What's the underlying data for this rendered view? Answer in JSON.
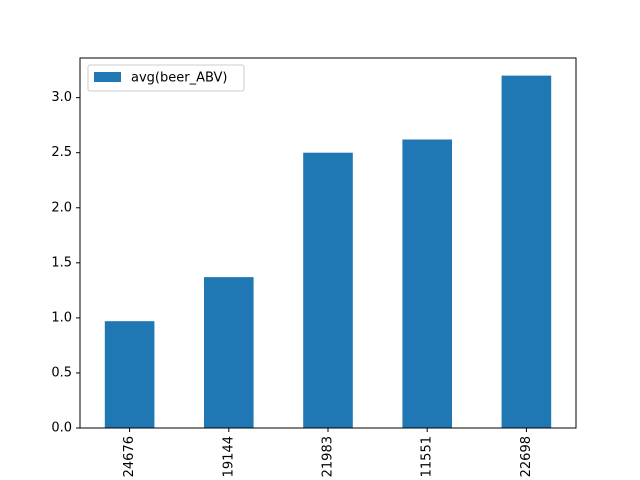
{
  "chart_data": {
    "type": "bar",
    "categories": [
      "24676",
      "19144",
      "21983",
      "11551",
      "22698"
    ],
    "series": [
      {
        "name": "avg(beer_ABV)",
        "values": [
          0.97,
          1.37,
          2.5,
          2.62,
          3.2
        ],
        "color": "#1f77b4"
      }
    ],
    "ylim": [
      0,
      3.36
    ],
    "yticks": [
      0.0,
      0.5,
      1.0,
      1.5,
      2.0,
      2.5,
      3.0
    ],
    "ytick_labels": [
      "0.0",
      "0.5",
      "1.0",
      "1.5",
      "2.0",
      "2.5",
      "3.0"
    ],
    "grid": false,
    "legend_position": "top-left"
  }
}
